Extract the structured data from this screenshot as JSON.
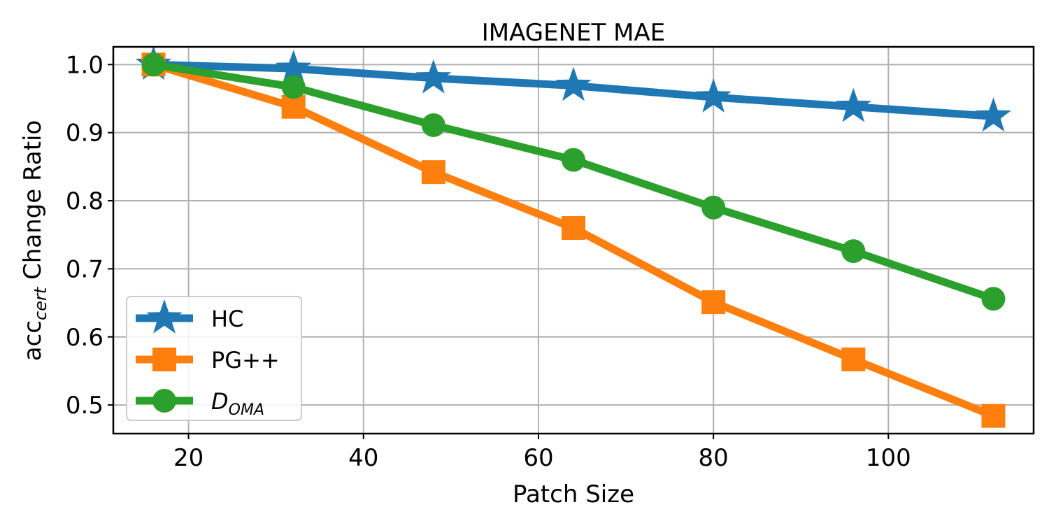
{
  "chart_data": {
    "type": "line",
    "title": "IMAGENET MAE",
    "xlabel": "Patch Size",
    "ylabel": "acc",
    "ylabel_subscript": "cert",
    "ylabel_suffix": " Change Ratio",
    "xlim": [
      11.4,
      116.6
    ],
    "ylim": [
      0.458,
      1.026
    ],
    "xticks": [
      20,
      40,
      60,
      80,
      100
    ],
    "yticks": [
      0.5,
      0.6,
      0.7,
      0.8,
      0.9,
      1.0
    ],
    "grid": true,
    "legend_position": "lower-left",
    "x": [
      16,
      32,
      48,
      64,
      80,
      96,
      112
    ],
    "series": [
      {
        "name": "HC",
        "marker": "star",
        "color": "#1f77b4",
        "values": [
          1.0,
          0.994,
          0.98,
          0.969,
          0.952,
          0.938,
          0.924
        ]
      },
      {
        "name": "PG++",
        "marker": "square",
        "color": "#ff7f0e",
        "values": [
          1.0,
          0.938,
          0.842,
          0.76,
          0.651,
          0.567,
          0.484
        ]
      },
      {
        "name": "D",
        "name_subscript": "OMA",
        "marker": "circle",
        "color": "#2ca02c",
        "values": [
          1.0,
          0.967,
          0.911,
          0.86,
          0.79,
          0.726,
          0.656
        ]
      }
    ]
  }
}
